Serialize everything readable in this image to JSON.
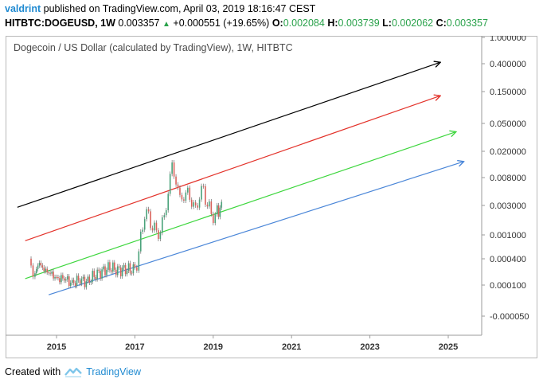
{
  "header": {
    "author": "valdrint",
    "published": "published on TradingView.com, April 03, 2019 18:16:47 CEST",
    "symbol": "HITBTC:DOGEUSD, 1W",
    "price": "0.003357",
    "change": "+0.000551 (+19.65%)",
    "o_label": "O:",
    "o_val": "0.002084",
    "h_label": "H:",
    "h_val": "0.003739",
    "l_label": "L:",
    "l_val": "0.002062",
    "c_label": "C:",
    "c_val": "0.003357"
  },
  "chart_title": "Dogecoin / US Dollar (calculated by TradingView), 1W, HITBTC",
  "footer": {
    "created_with": "Created with",
    "brand": "TradingView"
  },
  "chart_data": {
    "type": "line",
    "scale": "log",
    "x_ticks": [
      "2015",
      "2017",
      "2019",
      "2021",
      "2023",
      "2025"
    ],
    "y_ticks": [
      "1.000000",
      "0.400000",
      "0.150000",
      "0.050000",
      "0.020000",
      "0.008000",
      "0.003000",
      "0.001000",
      "0.000400",
      "0.000100",
      "-0.000050"
    ],
    "series": [
      {
        "name": "",
        "color": "#000000",
        "x": [
          2014.0,
          2024.8
        ],
        "y": [
          0.0028,
          0.42
        ]
      },
      {
        "name": "",
        "color": "#e3322a",
        "x": [
          2014.2,
          2024.8
        ],
        "y": [
          0.0008,
          0.13
        ]
      },
      {
        "name": "",
        "color": "#3dd63d",
        "x": [
          2014.2,
          2025.2
        ],
        "y": [
          0.00014,
          0.038
        ]
      },
      {
        "name": "",
        "color": "#4a86d8",
        "x": [
          2014.8,
          2025.4
        ],
        "y": [
          6e-05,
          0.014
        ]
      },
      {
        "name": "price",
        "color": "#4a7a6a",
        "x": [
          2014.35,
          2014.45,
          2014.6,
          2014.8,
          2015.0,
          2015.2,
          2015.4,
          2015.6,
          2015.8,
          2016.0,
          2016.2,
          2016.4,
          2016.6,
          2016.8,
          2017.0,
          2017.1,
          2017.2,
          2017.3,
          2017.4,
          2017.5,
          2017.6,
          2017.7,
          2017.8,
          2017.9,
          2018.0,
          2018.1,
          2018.2,
          2018.3,
          2018.4,
          2018.5,
          2018.6,
          2018.7,
          2018.8,
          2018.9,
          2019.0,
          2019.1,
          2019.25
        ],
        "y": [
          0.00035,
          0.00018,
          0.00028,
          0.00022,
          0.00014,
          0.00015,
          0.00011,
          0.00013,
          0.00012,
          0.00016,
          0.00021,
          0.00025,
          0.00022,
          0.00023,
          0.00022,
          0.0003,
          0.0008,
          0.0025,
          0.0018,
          0.0015,
          0.001,
          0.0012,
          0.002,
          0.0045,
          0.014,
          0.006,
          0.0045,
          0.0035,
          0.0055,
          0.003,
          0.0028,
          0.004,
          0.0055,
          0.003,
          0.0022,
          0.002,
          0.0034
        ]
      }
    ]
  }
}
